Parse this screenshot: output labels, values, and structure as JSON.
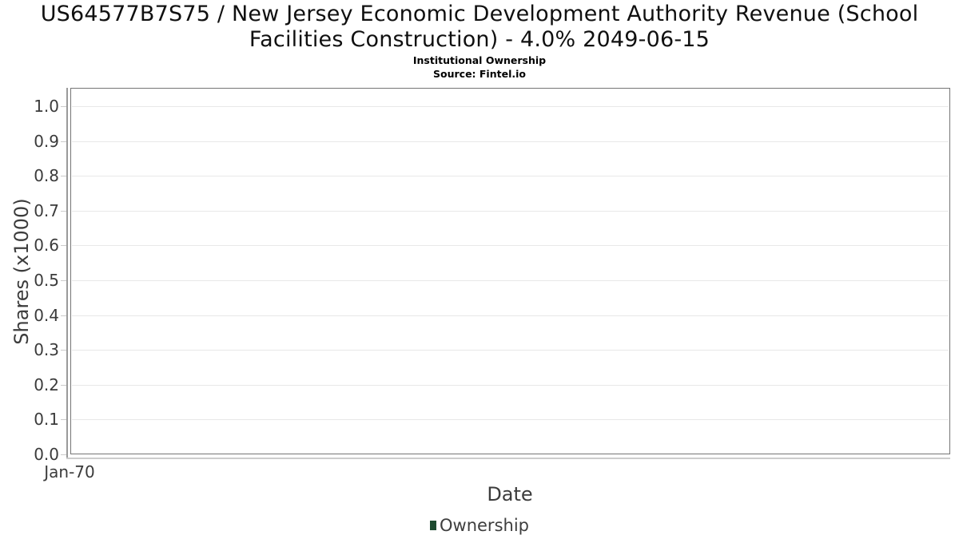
{
  "header": {
    "title_line1": "US64577B7S75 / New Jersey Economic Development Authority Revenue (School",
    "title_line2": "Facilities Construction) - 4.0% 2049-06-15",
    "subtitle": "Institutional Ownership",
    "source": "Source: Fintel.io"
  },
  "chart_data": {
    "type": "line",
    "title": "US64577B7S75 / New Jersey Economic Development Authority Revenue (School Facilities Construction) - 4.0% 2049-06-15",
    "subtitle": "Institutional Ownership",
    "source": "Source: Fintel.io",
    "xlabel": "Date",
    "ylabel": "Shares (x1000)",
    "x_ticks": [
      "Jan-70"
    ],
    "y_ticks": [
      "0.0",
      "0.1",
      "0.2",
      "0.3",
      "0.4",
      "0.5",
      "0.6",
      "0.7",
      "0.8",
      "0.9",
      "1.0"
    ],
    "ylim": [
      0,
      1.05
    ],
    "grid": true,
    "legend_position": "bottom-center",
    "legend": [
      {
        "label": "Ownership",
        "color": "#1e4b30"
      }
    ],
    "series": [
      {
        "name": "Ownership",
        "color": "#1e4b30",
        "values": []
      }
    ]
  },
  "colors": {
    "title_text": "#101010",
    "plot_border": "#757575",
    "grid": "#e8e8e8",
    "y_axis_line": "#9a9a9a",
    "x_axis_line": "#cccccc",
    "tick_mark": "#cccccc",
    "tick_text": "#3b3b3b",
    "axis_title_text": "#3c3c3c",
    "legend_text": "#3e3e3e",
    "legend_swatch": "#1e4b30"
  }
}
